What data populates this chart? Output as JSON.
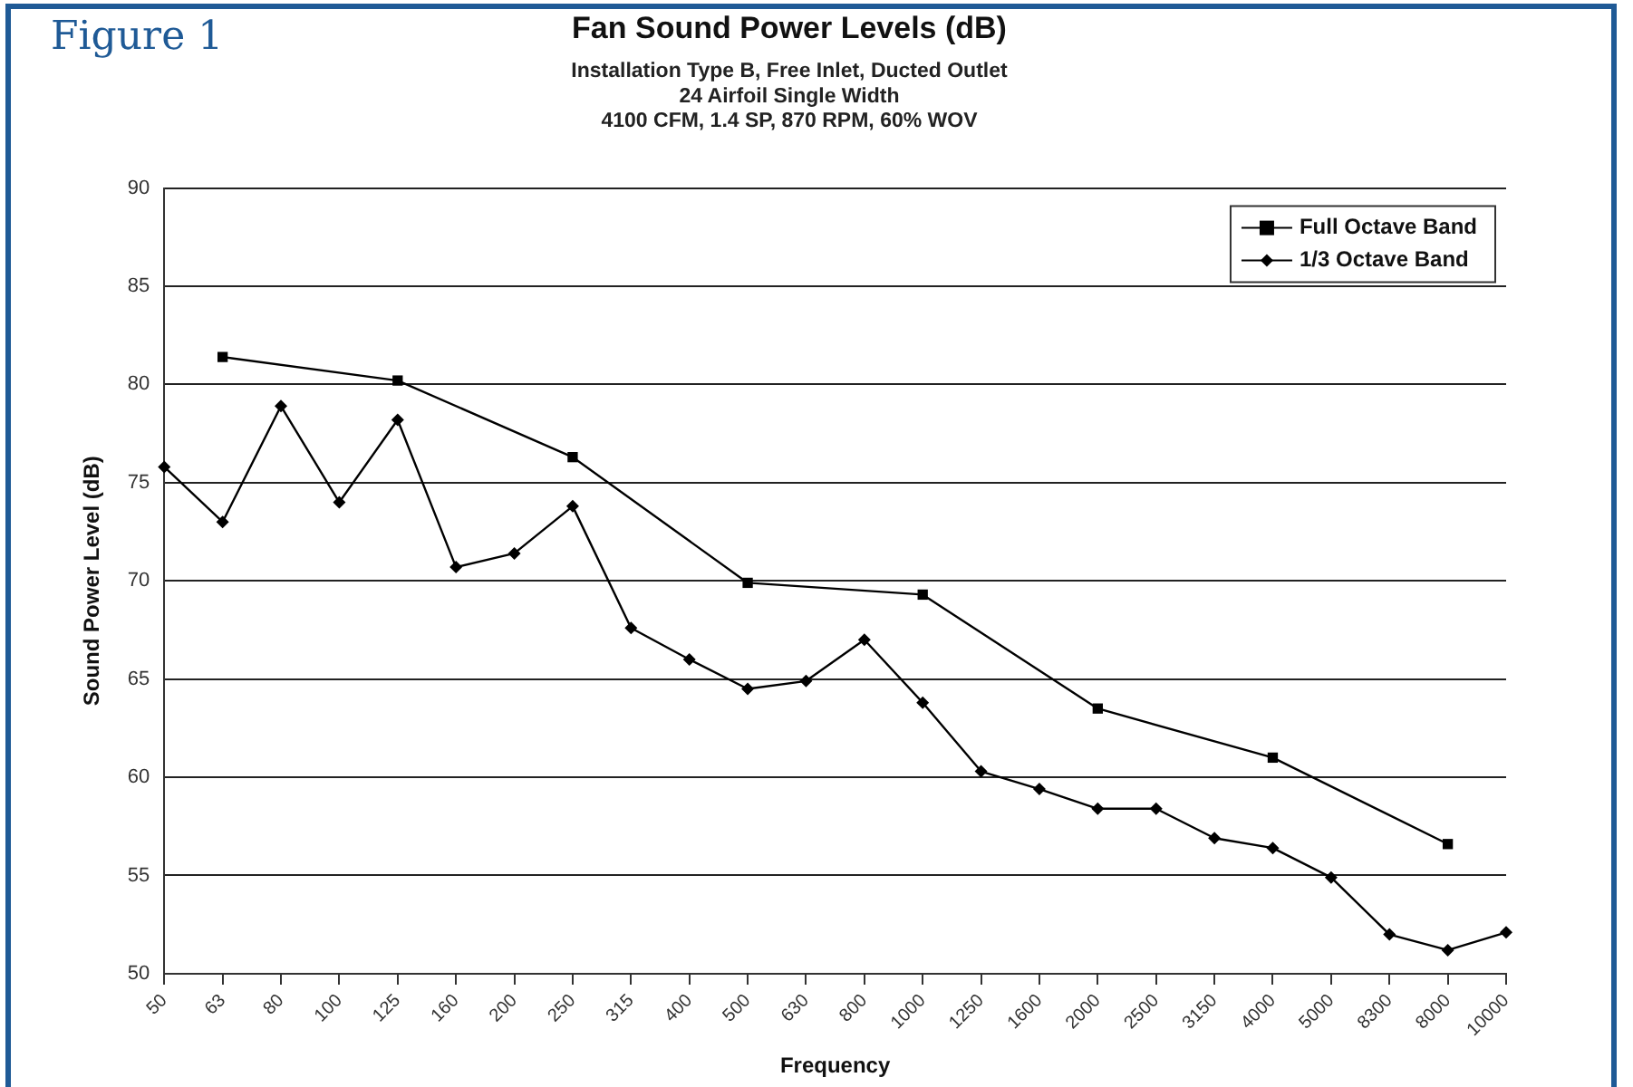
{
  "chart_data": {
    "type": "line",
    "title": "Fan Sound Power Levels (dB)",
    "subtitle": "Installation Type B, Free Inlet, Ducted Outlet\n24 Airfoil Single Width\n4100 CFM, 1.4 SP, 870 RPM, 60% WOV",
    "xlabel": "Frequency",
    "ylabel": "Sound Power Level (dB)",
    "annotations": [
      "Figure 1"
    ],
    "categories": [
      "50",
      "63",
      "80",
      "100",
      "125",
      "160",
      "200",
      "250",
      "315",
      "400",
      "500",
      "630",
      "800",
      "1000",
      "1250",
      "1600",
      "2000",
      "2500",
      "3150",
      "4000",
      "5000",
      "8300",
      "8000",
      "10000"
    ],
    "series": [
      {
        "name": "Full Octave Band",
        "color": "#000000",
        "marker": "square",
        "values": [
          null,
          81.4,
          null,
          null,
          80.2,
          null,
          null,
          76.3,
          null,
          null,
          69.9,
          null,
          null,
          69.3,
          null,
          null,
          63.5,
          null,
          null,
          61.0,
          null,
          null,
          56.6,
          null
        ]
      },
      {
        "name": "1/3 Octave Band",
        "color": "#000000",
        "marker": "diamond",
        "values": [
          75.8,
          73.0,
          78.9,
          74.0,
          78.2,
          70.7,
          71.4,
          73.8,
          67.6,
          66.0,
          64.5,
          64.9,
          67.0,
          63.8,
          60.3,
          59.4,
          58.4,
          58.4,
          56.9,
          56.4,
          54.9,
          52.0,
          51.2,
          52.1
        ]
      }
    ],
    "ylim": [
      50,
      90
    ],
    "yticks": [
      50,
      55,
      60,
      65,
      70,
      75,
      80,
      85,
      90
    ],
    "grid": "y",
    "legend": "top right",
    "line_style": "solid"
  }
}
